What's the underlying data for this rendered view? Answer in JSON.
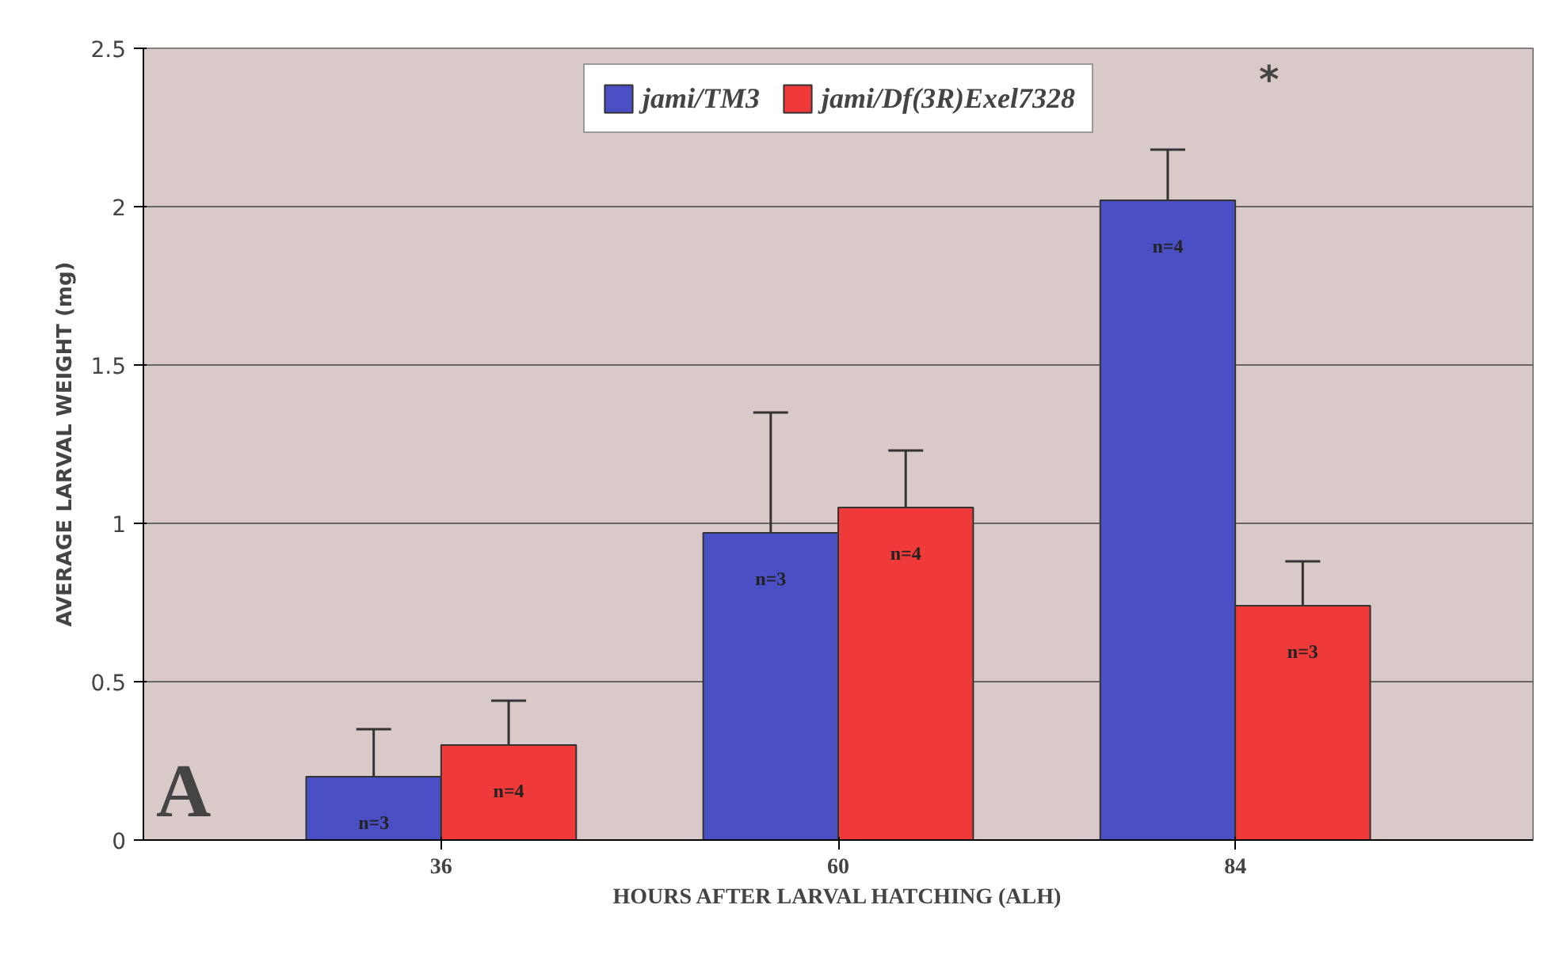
{
  "chart_data": {
    "type": "bar",
    "categories": [
      "36",
      "60",
      "84"
    ],
    "xlabel": "HOURS AFTER LARVAL HATCHING (ALH)",
    "ylabel": "AVERAGE LARVAL WEIGHT (mg)",
    "series": [
      {
        "name": "jami/TM3",
        "color": "#4a4fc4",
        "values": [
          0.2,
          0.97,
          2.02
        ],
        "errors": [
          [
            0.2,
            0.35
          ],
          [
            0.97,
            1.35
          ],
          [
            2.02,
            2.18
          ]
        ]
      },
      {
        "name": "jami/Df(3R)Exel7328",
        "color": "#f03a3a",
        "values": [
          0.3,
          1.05,
          0.74
        ],
        "errors": [
          [
            0.3,
            0.44
          ],
          [
            1.05,
            1.23
          ],
          [
            0.74,
            0.88
          ]
        ]
      }
    ],
    "ylim": [
      0,
      2.5
    ],
    "yticks": [
      0,
      0.5,
      1,
      1.5,
      2,
      2.5
    ],
    "grid": "y",
    "legend": "top",
    "annotations": [
      "n=3",
      "n=4",
      "n=3",
      "n=4",
      "n=4",
      "n=3",
      "*",
      "A"
    ]
  }
}
